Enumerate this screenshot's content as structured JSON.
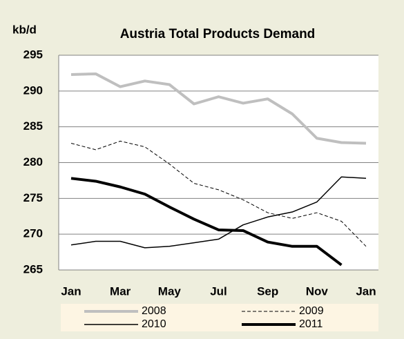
{
  "chart_data": {
    "type": "line",
    "title": "Austria Total Products Demand",
    "y_label": "kb/d",
    "categories": [
      "Jan",
      null,
      "Mar",
      null,
      "May",
      null,
      "Jul",
      null,
      "Sep",
      null,
      "Nov",
      null,
      "Jan"
    ],
    "series": [
      {
        "name": "2008",
        "color": "#bfbfbf",
        "width": 4,
        "dashed": false,
        "values": [
          292.3,
          292.4,
          290.6,
          291.4,
          290.9,
          288.2,
          289.2,
          288.3,
          288.9,
          286.8,
          283.4,
          282.8,
          282.7
        ]
      },
      {
        "name": "2009",
        "color": "#000000",
        "width": 1,
        "dashed": true,
        "values": [
          282.7,
          281.8,
          283.0,
          282.2,
          279.8,
          277.1,
          276.2,
          274.8,
          273.0,
          272.2,
          273.0,
          271.8,
          268.3
        ]
      },
      {
        "name": "2010",
        "color": "#000000",
        "width": 1.5,
        "dashed": false,
        "values": [
          268.5,
          269.0,
          269.0,
          268.1,
          268.3,
          268.8,
          269.3,
          271.3,
          272.4,
          273.1,
          274.5,
          278.0,
          277.8
        ]
      },
      {
        "name": "2011",
        "color": "#000000",
        "width": 4,
        "dashed": false,
        "values": [
          277.8,
          277.4,
          276.6,
          275.6,
          273.8,
          272.1,
          270.6,
          270.5,
          268.9,
          268.3,
          268.3,
          265.7,
          null
        ]
      }
    ],
    "ylim": [
      265,
      295
    ],
    "yticks": [
      265,
      270,
      275,
      280,
      285,
      290,
      295
    ],
    "grid": true
  }
}
